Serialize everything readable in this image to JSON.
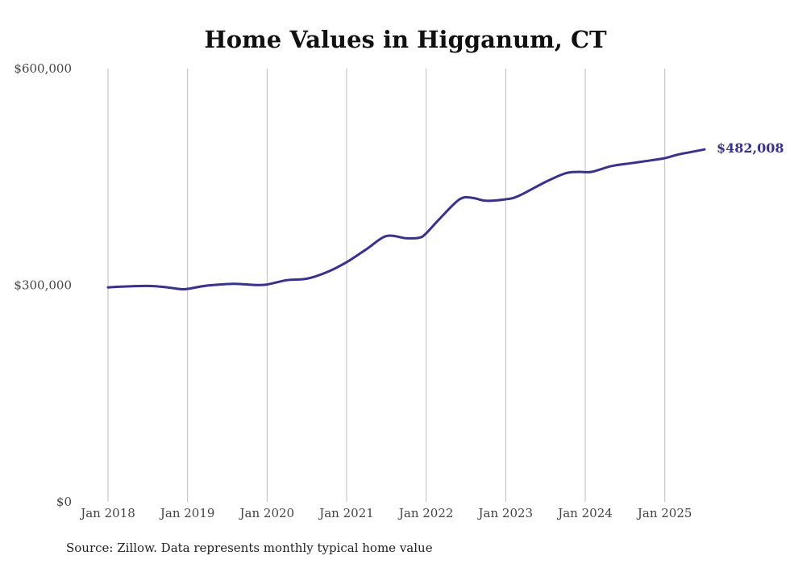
{
  "chart_data": {
    "type": "line",
    "title": "Home Values in Higganum, CT",
    "xlabel": "",
    "ylabel": "",
    "y_ticks": [
      "$0",
      "$300,000",
      "$600,000"
    ],
    "y_tick_values": [
      0,
      300000,
      600000
    ],
    "ylim": [
      0,
      600000
    ],
    "x_ticks": [
      "Jan 2018",
      "Jan 2019",
      "Jan 2020",
      "Jan 2021",
      "Jan 2022",
      "Jan 2023",
      "Jan 2024",
      "Jan 2025"
    ],
    "x_tick_values": [
      2018.0,
      2019.0,
      2020.0,
      2021.0,
      2022.0,
      2023.0,
      2024.0,
      2025.0
    ],
    "xlim": [
      2018.0,
      2025.5
    ],
    "grid": "vertical",
    "end_label": "$482,008",
    "series": [
      {
        "color": "#38309a",
        "x": [
          2018.0,
          2018.17,
          2018.5,
          2018.75,
          2018.92,
          2019.0,
          2019.25,
          2019.58,
          2019.83,
          2020.0,
          2020.25,
          2020.5,
          2020.75,
          2021.0,
          2021.25,
          2021.5,
          2021.75,
          2021.92,
          2022.0,
          2022.17,
          2022.42,
          2022.58,
          2022.75,
          2023.0,
          2023.17,
          2023.5,
          2023.75,
          2023.92,
          2024.08,
          2024.33,
          2024.58,
          2024.83,
          2025.0,
          2025.17,
          2025.5
        ],
        "y": [
          297000,
          298000,
          299000,
          297000,
          294500,
          295000,
          299500,
          302000,
          300500,
          301000,
          307000,
          309000,
          318000,
          332000,
          350000,
          368000,
          365000,
          366000,
          372000,
          392000,
          419000,
          421000,
          417000,
          419000,
          424000,
          443000,
          455000,
          457000,
          457000,
          465000,
          469000,
          473000,
          476000,
          481000,
          488000
        ]
      }
    ]
  },
  "source": "Source: Zillow. Data represents monthly typical home value"
}
